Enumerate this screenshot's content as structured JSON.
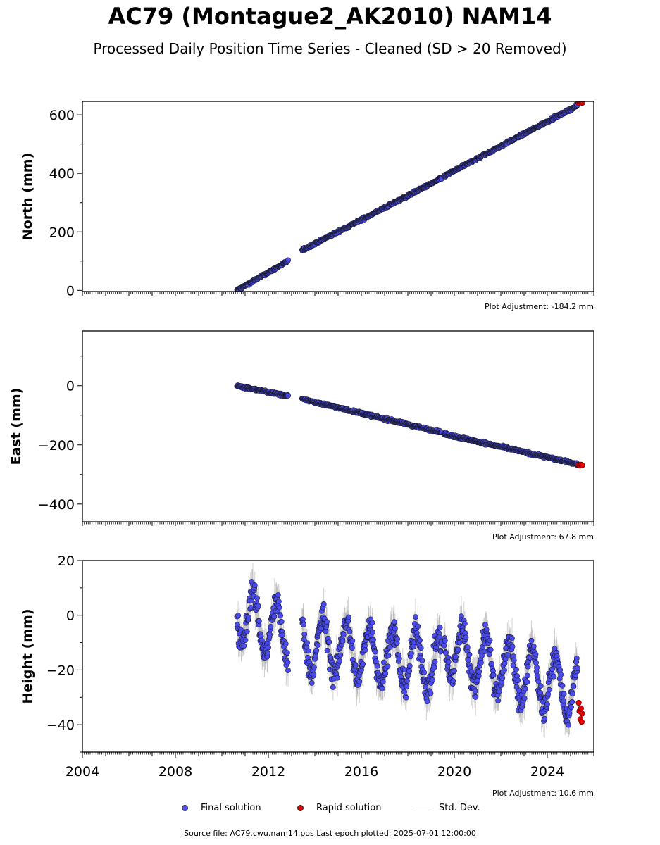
{
  "title": "AC79 (Montague2_AK2010) NAM14",
  "subtitle": "Processed Daily Position Time Series - Cleaned (SD > 20 Removed)",
  "source_note": "Source file: AC79.cwu.nam14.pos  Last epoch plotted: 2025-07-01 12:00:00",
  "legend": {
    "final": "Final solution",
    "rapid": "Rapid solution",
    "std": "Std. Dev."
  },
  "colors": {
    "final": "#4b4bf2",
    "rapid": "#e60000",
    "std": "#9a9a9a",
    "edge": "#1a1a2e"
  },
  "chart_data": [
    {
      "type": "scatter",
      "ylabel": "North (mm)",
      "adjustment": "Plot Adjustment: -184.2 mm",
      "xlim": [
        2004,
        2026
      ],
      "ylim": [
        -4,
        646
      ],
      "yticks": [
        0,
        200,
        400,
        600
      ],
      "yticklabels": [
        "0",
        "200",
        "400",
        "600"
      ],
      "show_xticklabels": false,
      "segments": [
        {
          "start": 2010.65,
          "end": 2012.85,
          "y0": 0,
          "y1": 100
        },
        {
          "start": 2013.45,
          "end": 2019.45,
          "y0": 137,
          "y1": 383
        },
        {
          "start": 2019.55,
          "end": 2025.3,
          "y0": 390,
          "y1": 632
        }
      ],
      "rapid_points": [
        [
          2025.35,
          640
        ],
        [
          2025.4,
          642
        ],
        [
          2025.45,
          644
        ],
        [
          2025.5,
          641
        ]
      ],
      "noise_mm": 3,
      "std_mm": 2
    },
    {
      "type": "scatter",
      "ylabel": "East (mm)",
      "adjustment": "Plot Adjustment: 67.8 mm",
      "xlim": [
        2004,
        2026
      ],
      "ylim": [
        -460,
        185
      ],
      "yticks": [
        0,
        -200,
        -400
      ],
      "yticklabels": [
        "0",
        "−200",
        "−400"
      ],
      "show_xticklabels": false,
      "segments": [
        {
          "start": 2010.65,
          "end": 2012.85,
          "y0": 0,
          "y1": -35
        },
        {
          "start": 2013.45,
          "end": 2019.45,
          "y0": -45,
          "y1": -158
        },
        {
          "start": 2019.55,
          "end": 2025.3,
          "y0": -163,
          "y1": -265
        }
      ],
      "rapid_points": [
        [
          2025.35,
          -268
        ],
        [
          2025.4,
          -270
        ],
        [
          2025.45,
          -267
        ],
        [
          2025.5,
          -269
        ]
      ],
      "noise_mm": 3,
      "std_mm": 2
    },
    {
      "type": "scatter",
      "ylabel": "Height (mm)",
      "adjustment": "Plot Adjustment: 10.6 mm",
      "xlim": [
        2004,
        2026
      ],
      "ylim": [
        -50,
        20
      ],
      "yticks": [
        20,
        0,
        -20,
        -40
      ],
      "yticklabels": [
        "20",
        "0",
        "−20",
        "−40"
      ],
      "show_xticklabels": true,
      "xticks": [
        2004,
        2008,
        2012,
        2016,
        2020,
        2024
      ],
      "xticklabels": [
        "2004",
        "2008",
        "2012",
        "2016",
        "2020",
        "2024"
      ],
      "segments": [
        {
          "start": 2010.65,
          "end": 2012.85,
          "y0": 1,
          "y1": -8
        },
        {
          "start": 2013.45,
          "end": 2019.45,
          "y0": -10,
          "y1": -18
        },
        {
          "start": 2019.55,
          "end": 2025.3,
          "y0": -12,
          "y1": -28
        }
      ],
      "seasonal_amplitude_mm": 10,
      "rapid_points": [
        [
          2025.35,
          -32
        ],
        [
          2025.38,
          -35
        ],
        [
          2025.42,
          -38
        ],
        [
          2025.45,
          -34
        ],
        [
          2025.48,
          -39
        ],
        [
          2025.5,
          -36
        ]
      ],
      "noise_mm": 3.5,
      "std_mm": 5
    }
  ]
}
